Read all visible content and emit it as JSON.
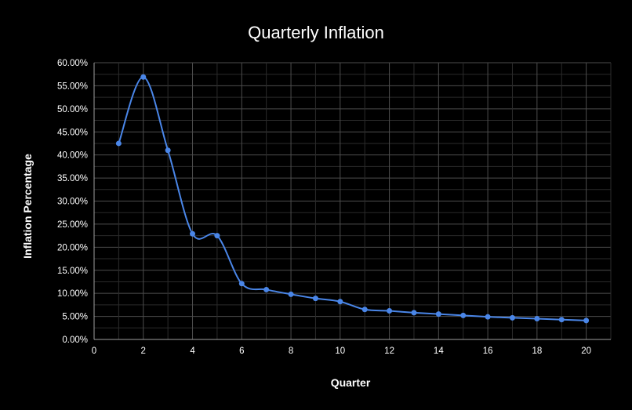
{
  "chart_data": {
    "type": "line",
    "title": "Quarterly Inflation",
    "xlabel": "Quarter",
    "ylabel": "Inflation Percentage",
    "xlim": [
      0,
      21
    ],
    "ylim": [
      0,
      60
    ],
    "xticks": [
      0,
      2,
      4,
      6,
      8,
      10,
      12,
      14,
      16,
      18,
      20
    ],
    "yticks": [
      0,
      5,
      10,
      15,
      20,
      25,
      30,
      35,
      40,
      45,
      50,
      55,
      60
    ],
    "ytick_labels": [
      "0.00%",
      "5.00%",
      "10.00%",
      "15.00%",
      "20.00%",
      "25.00%",
      "30.00%",
      "35.00%",
      "40.00%",
      "45.00%",
      "50.00%",
      "55.00%",
      "60.00%"
    ],
    "grid": true,
    "legend": "none",
    "smooth": true,
    "series": [
      {
        "color": "#4a86e8",
        "x": [
          1,
          2,
          3,
          4,
          5,
          6,
          7,
          8,
          9,
          10,
          11,
          12,
          13,
          14,
          15,
          16,
          17,
          18,
          19,
          20
        ],
        "y": [
          42.5,
          56.9,
          41.0,
          22.9,
          22.5,
          12.1,
          10.8,
          9.8,
          8.9,
          8.2,
          6.5,
          6.2,
          5.8,
          5.5,
          5.2,
          4.9,
          4.7,
          4.5,
          4.3,
          4.1
        ]
      }
    ]
  }
}
